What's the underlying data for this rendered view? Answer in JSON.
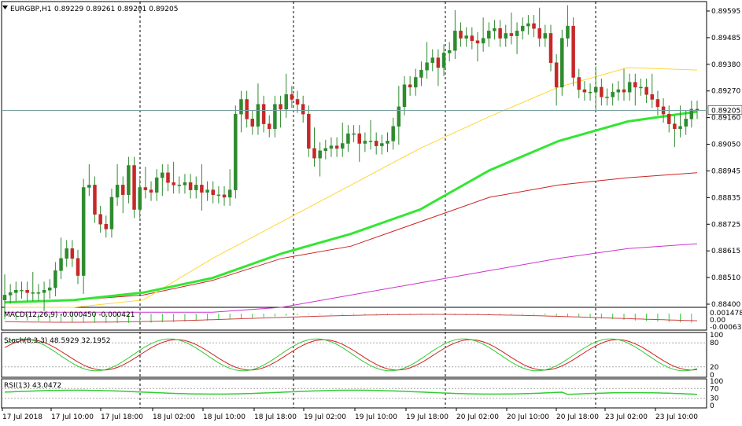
{
  "header": {
    "symbol_label": "EURGBP,H1",
    "ohlc_label": "0.89229 0.89261 0.89201 0.89205"
  },
  "current_price_label": "0.89205",
  "chart_data": {
    "type": "candlestick",
    "symbol": "EURGBP",
    "timeframe": "H1",
    "ohlc": {
      "open": 0.89229,
      "high": 0.89261,
      "low": 0.89201,
      "close": 0.89205
    },
    "ylim": [
      0.884,
      0.8965
    ],
    "y_ticks": [
      "0.89595",
      "0.89485",
      "0.89380",
      "0.89270",
      "0.89160",
      "0.89050",
      "0.88945",
      "0.88835",
      "0.88725",
      "0.88615",
      "0.88510",
      "0.88400"
    ],
    "x_ticks": [
      "17 Jul 2018",
      "17 Jul 10:00",
      "17 Jul 18:00",
      "18 Jul 02:00",
      "18 Jul 10:00",
      "18 Jul 18:00",
      "19 Jul 02:00",
      "19 Jul 10:00",
      "19 Jul 18:00",
      "20 Jul 02:00",
      "20 Jul 10:00",
      "20 Jul 18:00",
      "23 Jul 02:00",
      "23 Jul 10:00"
    ],
    "colors": {
      "background": "#ffffff",
      "candle_up": "#2e8b2e",
      "candle_down": "#c62828",
      "ma_fast": "#ffd633",
      "ma_slow": "#33e633",
      "ma_mid": "#cc2222",
      "ma_long": "#cc33cc",
      "macd_hist": "#33cc33",
      "macd_signal": "#d04040",
      "stoch_main": "#33cc33",
      "stoch_signal": "#cc2222",
      "rsi": "#33cc33"
    },
    "closes": [
      0.8845,
      0.8846,
      0.8847,
      0.8847,
      0.8846,
      0.8846,
      0.8846,
      0.8847,
      0.8848,
      0.8855,
      0.886,
      0.8864,
      0.886,
      0.8853,
      0.8889,
      0.889,
      0.8878,
      0.8874,
      0.8872,
      0.8885,
      0.889,
      0.8886,
      0.8898,
      0.888,
      0.8889,
      0.8888,
      0.8887,
      0.8893,
      0.8895,
      0.8891,
      0.889,
      0.889,
      0.8891,
      0.8888,
      0.889,
      0.8887,
      0.8888,
      0.8886,
      0.8886,
      0.8885,
      0.8888,
      0.8919,
      0.8925,
      0.8917,
      0.8914,
      0.8923,
      0.8915,
      0.8913,
      0.8923,
      0.8921,
      0.8927,
      0.8925,
      0.8923,
      0.8919,
      0.8905,
      0.8901,
      0.8904,
      0.8905,
      0.8906,
      0.8905,
      0.8907,
      0.8911,
      0.8911,
      0.8907,
      0.8908,
      0.8908,
      0.8906,
      0.8907,
      0.8908,
      0.8914,
      0.8922,
      0.8931,
      0.893,
      0.8934,
      0.8937,
      0.894,
      0.8942,
      0.8938,
      0.8944,
      0.8945,
      0.8953,
      0.895,
      0.8951,
      0.8949,
      0.8948,
      0.895,
      0.8953,
      0.8954,
      0.895,
      0.8952,
      0.8951,
      0.8953,
      0.8955,
      0.8956,
      0.8954,
      0.895,
      0.8952,
      0.894,
      0.893,
      0.895,
      0.8955,
      0.8934,
      0.8929,
      0.8928,
      0.8928,
      0.893,
      0.8926,
      0.8926,
      0.8928,
      0.8929,
      0.8928,
      0.8932,
      0.893,
      0.893,
      0.8927,
      0.8925,
      0.8922,
      0.8919,
      0.8915,
      0.8913,
      0.8914,
      0.8917,
      0.8921,
      0.89205
    ],
    "ma_fast_points": [
      0.884,
      0.884,
      0.8843,
      0.886,
      0.8875,
      0.889,
      0.8905,
      0.8918,
      0.893,
      0.8938,
      0.8937
    ],
    "ma_slow_points": [
      0.8842,
      0.8843,
      0.8846,
      0.8852,
      0.8862,
      0.887,
      0.888,
      0.8896,
      0.8908,
      0.8916,
      0.892
    ],
    "ma_mid_points": [
      0.8842,
      0.8843,
      0.8845,
      0.8851,
      0.886,
      0.8865,
      0.8875,
      0.8885,
      0.889,
      0.8893,
      0.8895
    ],
    "ma_long_points": [
      0.8838,
      0.8838,
      0.8838,
      0.8838,
      0.884,
      0.8845,
      0.885,
      0.8855,
      0.886,
      0.8864,
      0.8866
    ],
    "indicators": {
      "macd": {
        "label": "MACD(12,26,9) -0.000450 -0.000421",
        "ticks": [
          "0.001478",
          "0.00",
          "-0.000631"
        ]
      },
      "stoch": {
        "label": "Stoch(8,3,3) 48.5929 32.1952",
        "ticks": [
          "100",
          "80",
          "20",
          "0"
        ],
        "levels": [
          80,
          20
        ]
      },
      "rsi": {
        "label": "RSI(13) 43.0472",
        "ticks": [
          "100",
          "70",
          "30",
          "0"
        ],
        "levels": [
          70,
          30
        ]
      }
    }
  }
}
